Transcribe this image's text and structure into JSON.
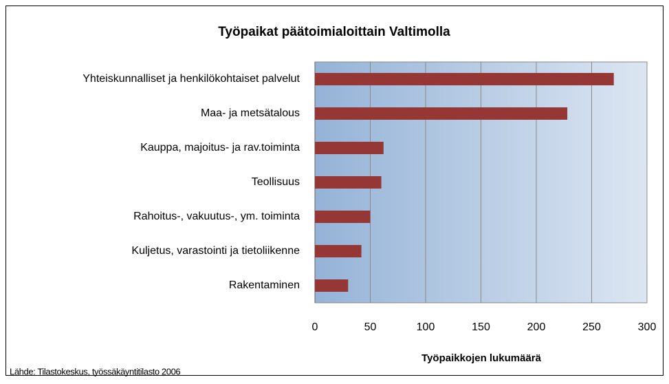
{
  "chart_data": {
    "type": "bar",
    "orientation": "horizontal",
    "title": "Työpaikat päätoimialoittain Valtimolla",
    "x_label": "Työpaikkojen lukumäärä",
    "source": "Lähde: Tilastokeskus, työssäkäyntitilasto 2006",
    "categories": [
      "Yhteiskunnalliset ja henkilökohtaiset palvelut",
      "Maa- ja metsätalous",
      "Kauppa, majoitus- ja rav.toiminta",
      "Teollisuus",
      "Rahoitus-, vakuutus-, ym. toiminta",
      "Kuljetus, varastointi ja tietoliikenne",
      "Rakentaminen"
    ],
    "values": [
      270,
      228,
      62,
      60,
      50,
      42,
      30
    ],
    "color": "#953735",
    "xlim": [
      0,
      300
    ],
    "xticks": [
      0,
      50,
      100,
      150,
      200,
      250,
      300
    ],
    "grid": true
  }
}
